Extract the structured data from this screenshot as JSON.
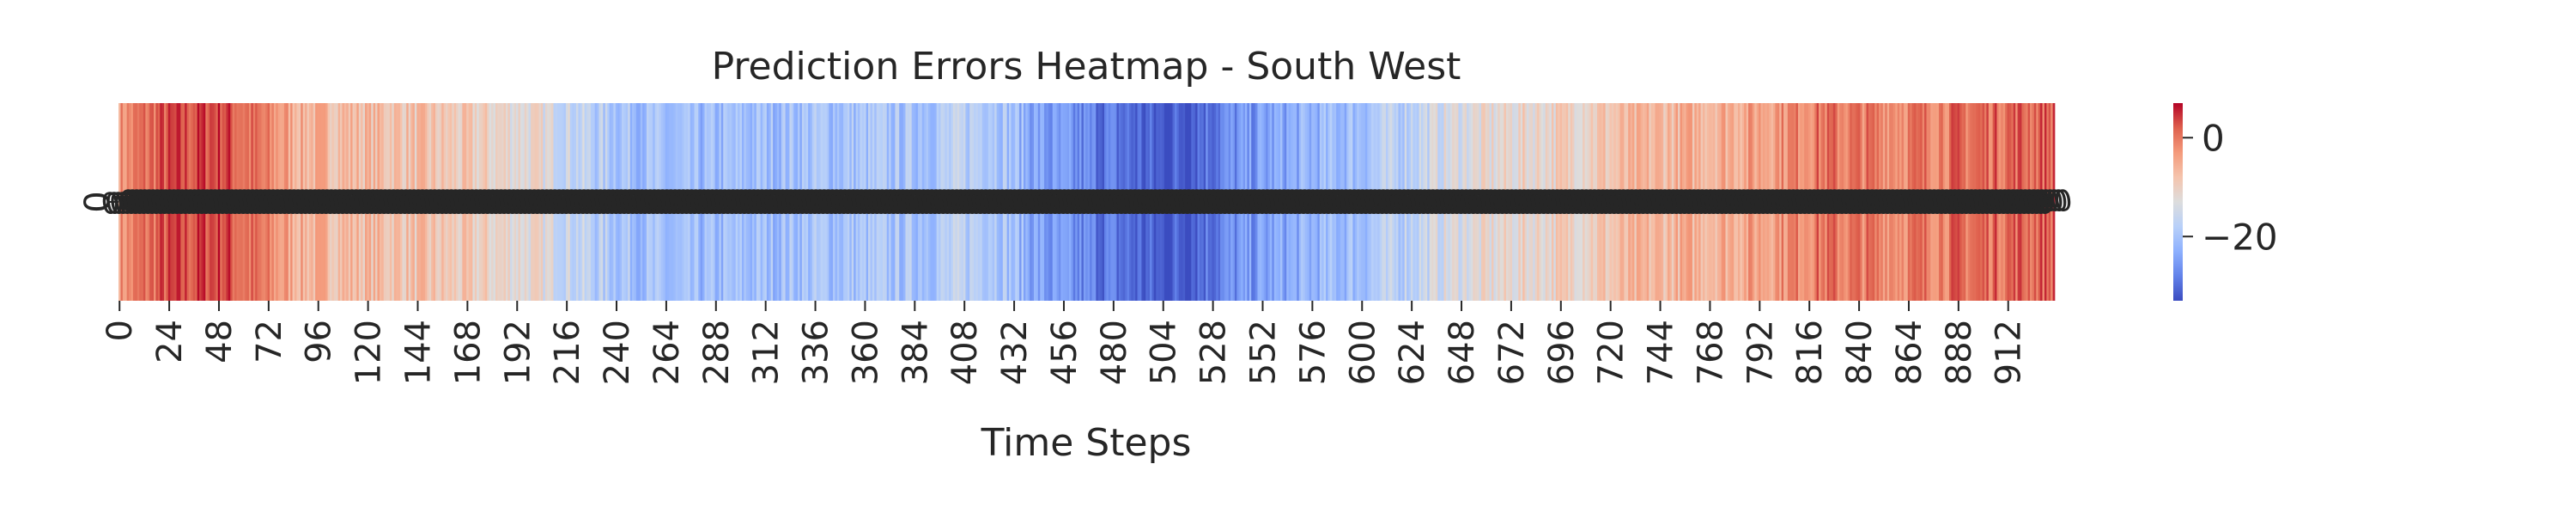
{
  "chart_data": {
    "type": "heatmap",
    "title": "Prediction Errors Heatmap - South West",
    "xlabel": "Time Steps",
    "ylabel": "",
    "y_tick_labels": [
      "0"
    ],
    "x_range": [
      0,
      935
    ],
    "x_ticks": [
      0,
      24,
      48,
      72,
      96,
      120,
      144,
      168,
      192,
      216,
      240,
      264,
      288,
      312,
      336,
      360,
      384,
      408,
      432,
      456,
      480,
      504,
      528,
      552,
      576,
      600,
      624,
      648,
      672,
      696,
      720,
      744,
      768,
      792,
      816,
      840,
      864,
      888,
      912
    ],
    "x_tick_labels": [
      "0",
      "24",
      "48",
      "72",
      "96",
      "120",
      "144",
      "168",
      "192",
      "216",
      "240",
      "264",
      "288",
      "312",
      "336",
      "360",
      "384",
      "408",
      "432",
      "456",
      "480",
      "504",
      "528",
      "552",
      "576",
      "600",
      "624",
      "648",
      "672",
      "696",
      "720",
      "744",
      "768",
      "792",
      "816",
      "840",
      "864",
      "888",
      "912"
    ],
    "colorbar": {
      "colormap": "coolwarm",
      "vmin": -33,
      "vmax": 7,
      "ticks": [
        0,
        -20
      ],
      "tick_labels": [
        "0",
        "−20"
      ]
    },
    "cell_annotations": "dense overlapping numeric labels in each cell (illegible)",
    "trend_profile": {
      "description": "error value (data units) along the time axis; cells vary around this trend",
      "x": [
        0,
        20,
        50,
        60,
        90,
        140,
        200,
        230,
        270,
        330,
        380,
        420,
        450,
        480,
        505,
        530,
        560,
        600,
        650,
        700,
        740,
        790,
        820,
        860,
        900,
        935
      ],
      "values": [
        -3,
        2,
        4,
        1,
        -6,
        -8,
        -12,
        -18,
        -22,
        -20,
        -20,
        -17,
        -26,
        -29,
        -32,
        -28,
        -24,
        -20,
        -13,
        -10,
        -7,
        -4,
        0,
        -1,
        1,
        2
      ]
    }
  }
}
